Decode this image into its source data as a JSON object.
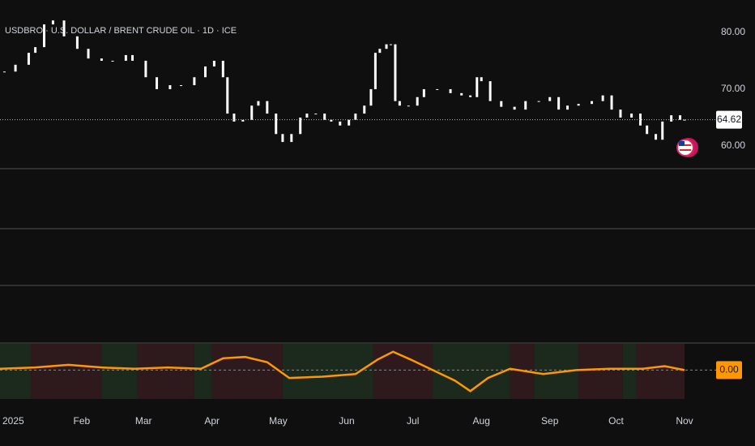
{
  "chart_data": [
    {
      "type": "candlestick",
      "title": "USDBRO · U.S. DOLLAR / BRENT CRUDE OIL · 1D · ICE",
      "color": "#ffffff",
      "xlim": [
        -6,
        304
      ],
      "ylim": [
        56,
        85.7
      ],
      "yticks": [
        {
          "value": 60,
          "label": "60.00"
        },
        {
          "value": 70,
          "label": "70.00"
        },
        {
          "value": 80,
          "label": "80.00"
        }
      ],
      "x": [
        -4,
        1,
        7,
        10,
        14,
        18,
        23,
        29,
        34,
        40,
        45,
        51,
        54,
        60,
        65,
        71,
        76,
        82,
        87,
        91,
        95,
        97,
        100,
        104,
        108,
        111,
        115,
        119,
        122,
        126,
        130,
        133,
        137,
        141,
        144,
        148,
        152,
        155,
        159,
        162,
        164,
        166,
        169,
        171,
        173,
        175,
        179,
        183,
        186,
        192,
        198,
        203,
        207,
        210,
        212,
        216,
        221,
        227,
        232,
        238,
        243,
        247,
        251,
        256,
        262,
        267,
        271,
        275,
        280,
        284,
        287,
        291,
        294,
        298,
        302,
        304
      ],
      "values": [
        73.1,
        74.3,
        76.4,
        77.4,
        81.4,
        82.1,
        79.3,
        77.1,
        75.4,
        75,
        75,
        76,
        75,
        72.1,
        70,
        70.7,
        70.7,
        72.1,
        74,
        75,
        72.1,
        65.7,
        64.3,
        64.6,
        67.1,
        67.9,
        65.7,
        62.1,
        60.7,
        62.1,
        65,
        65.7,
        65.7,
        64.6,
        64.3,
        63.6,
        64.6,
        65.7,
        67.1,
        70,
        76.4,
        77.1,
        77.9,
        77.9,
        67.9,
        67.1,
        67.1,
        68.6,
        70,
        70,
        69.3,
        68.9,
        68.6,
        72.1,
        71.4,
        67.9,
        66.9,
        66.4,
        67.9,
        67.9,
        68.6,
        66.4,
        67.1,
        67.4,
        67.9,
        68.9,
        66.4,
        65,
        65.7,
        63.6,
        62.1,
        61.1,
        64.3,
        65.4,
        64.6,
        64.62
      ]
    },
    {
      "type": "line",
      "color": "#ff9800",
      "xlim": [
        -6,
        304
      ],
      "ylim": [
        -1.1,
        1
      ],
      "yticks": [
        {
          "value": 0,
          "label": "0.00"
        }
      ],
      "xticks": [
        {
          "value": 0,
          "label": "2025"
        },
        {
          "value": 31,
          "label": "Feb"
        },
        {
          "value": 59,
          "label": "Mar"
        },
        {
          "value": 90,
          "label": "Apr"
        },
        {
          "value": 120,
          "label": "May"
        },
        {
          "value": 151,
          "label": "Jun"
        },
        {
          "value": 181,
          "label": "Jul"
        },
        {
          "value": 212,
          "label": "Aug"
        },
        {
          "value": 243,
          "label": "Sep"
        },
        {
          "value": 273,
          "label": "Oct"
        },
        {
          "value": 304,
          "label": "Nov"
        }
      ],
      "x": [
        -6,
        10,
        25,
        40,
        55,
        70,
        85,
        95,
        105,
        115,
        125,
        140,
        155,
        165,
        172,
        180,
        190,
        200,
        207,
        215,
        225,
        240,
        255,
        270,
        285,
        295,
        304
      ],
      "values": [
        0.05,
        0.1,
        0.2,
        0.1,
        0.05,
        0.1,
        0.05,
        0.45,
        0.5,
        0.3,
        -0.3,
        -0.25,
        -0.15,
        0.4,
        0.7,
        0.4,
        0,
        -0.4,
        -0.8,
        -0.3,
        0.05,
        -0.15,
        0,
        0.05,
        0.05,
        0.15,
        0
      ],
      "bands": [
        {
          "start": -6,
          "end": 8,
          "color": "#1c2a1e"
        },
        {
          "start": 8,
          "end": 40,
          "color": "#2e1a1c"
        },
        {
          "start": 40,
          "end": 56,
          "color": "#1c2a1e"
        },
        {
          "start": 56,
          "end": 82,
          "color": "#2e1a1c"
        },
        {
          "start": 82,
          "end": 90,
          "color": "#1c2a1e"
        },
        {
          "start": 90,
          "end": 122,
          "color": "#2e1a1c"
        },
        {
          "start": 122,
          "end": 163,
          "color": "#1c2a1e"
        },
        {
          "start": 163,
          "end": 190,
          "color": "#2e1a1c"
        },
        {
          "start": 190,
          "end": 225,
          "color": "#1c2a1e"
        },
        {
          "start": 225,
          "end": 236,
          "color": "#2e1a1c"
        },
        {
          "start": 236,
          "end": 256,
          "color": "#1c2a1e"
        },
        {
          "start": 256,
          "end": 276,
          "color": "#2e1a1c"
        },
        {
          "start": 276,
          "end": 282,
          "color": "#1c2a1e"
        },
        {
          "start": 282,
          "end": 304,
          "color": "#2e1a1c"
        }
      ]
    }
  ]
}
